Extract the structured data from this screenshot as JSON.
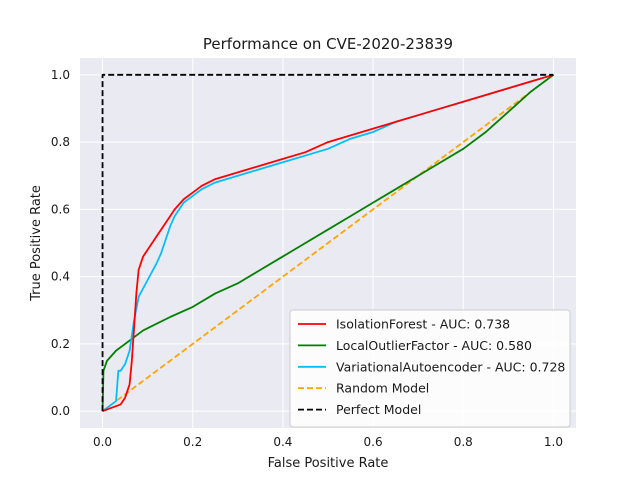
{
  "chart_data": {
    "type": "line",
    "title": "Performance on CVE-2020-23839",
    "xlabel": "False Positive Rate",
    "ylabel": "True Positive Rate",
    "xlim": [
      -0.05,
      1.05
    ],
    "ylim": [
      -0.05,
      1.05
    ],
    "xticks": [
      0.0,
      0.2,
      0.4,
      0.6,
      0.8,
      1.0
    ],
    "yticks": [
      0.0,
      0.2,
      0.4,
      0.6,
      0.8,
      1.0
    ],
    "tick_labels_x": [
      "0.0",
      "0.2",
      "0.4",
      "0.6",
      "0.8",
      "1.0"
    ],
    "tick_labels_y": [
      "0.0",
      "0.2",
      "0.4",
      "0.6",
      "0.8",
      "1.0"
    ],
    "grid": true,
    "background": "#eaeaf2",
    "legend_position": "lower-right",
    "series": [
      {
        "name": "IsolationForest - AUC: 0.738",
        "color": "#ff0000",
        "dash": "solid",
        "x": [
          0.0,
          0.02,
          0.04,
          0.05,
          0.06,
          0.065,
          0.07,
          0.075,
          0.08,
          0.09,
          0.1,
          0.12,
          0.14,
          0.16,
          0.18,
          0.2,
          0.22,
          0.25,
          0.3,
          0.35,
          0.4,
          0.45,
          0.5,
          0.55,
          0.6,
          0.65,
          0.7,
          0.75,
          0.8,
          0.85,
          0.9,
          0.95,
          1.0
        ],
        "y": [
          0.0,
          0.01,
          0.02,
          0.04,
          0.08,
          0.15,
          0.25,
          0.35,
          0.42,
          0.46,
          0.48,
          0.52,
          0.56,
          0.6,
          0.63,
          0.65,
          0.67,
          0.69,
          0.71,
          0.73,
          0.75,
          0.77,
          0.8,
          0.82,
          0.84,
          0.86,
          0.88,
          0.9,
          0.92,
          0.94,
          0.96,
          0.98,
          1.0
        ]
      },
      {
        "name": "LocalOutlierFactor - AUC: 0.580",
        "color": "#008000",
        "dash": "solid",
        "x": [
          0.0,
          0.002,
          0.01,
          0.03,
          0.05,
          0.07,
          0.09,
          0.12,
          0.15,
          0.2,
          0.25,
          0.3,
          0.35,
          0.4,
          0.45,
          0.5,
          0.55,
          0.6,
          0.65,
          0.7,
          0.75,
          0.8,
          0.85,
          0.9,
          0.95,
          1.0
        ],
        "y": [
          0.0,
          0.12,
          0.15,
          0.18,
          0.2,
          0.22,
          0.24,
          0.26,
          0.28,
          0.31,
          0.35,
          0.38,
          0.42,
          0.46,
          0.5,
          0.54,
          0.58,
          0.62,
          0.66,
          0.7,
          0.74,
          0.78,
          0.83,
          0.89,
          0.95,
          1.0
        ]
      },
      {
        "name": "VariationalAutoencoder - AUC: 0.728",
        "color": "#00bfff",
        "dash": "solid",
        "x": [
          0.0,
          0.03,
          0.035,
          0.04,
          0.05,
          0.06,
          0.07,
          0.08,
          0.1,
          0.12,
          0.13,
          0.14,
          0.15,
          0.16,
          0.18,
          0.2,
          0.22,
          0.25,
          0.3,
          0.35,
          0.4,
          0.45,
          0.5,
          0.55,
          0.6,
          0.65,
          0.7,
          0.75,
          0.8,
          0.85,
          0.9,
          0.95,
          1.0
        ],
        "y": [
          0.0,
          0.03,
          0.12,
          0.12,
          0.14,
          0.18,
          0.27,
          0.34,
          0.39,
          0.44,
          0.47,
          0.51,
          0.55,
          0.58,
          0.62,
          0.64,
          0.66,
          0.68,
          0.7,
          0.72,
          0.74,
          0.76,
          0.78,
          0.81,
          0.83,
          0.86,
          0.88,
          0.9,
          0.92,
          0.94,
          0.96,
          0.98,
          1.0
        ]
      },
      {
        "name": "Random Model",
        "color": "#ffa500",
        "dash": "dashed",
        "x": [
          0.0,
          1.0
        ],
        "y": [
          0.0,
          1.0
        ]
      },
      {
        "name": "Perfect Model",
        "color": "#000000",
        "dash": "dashed",
        "x": [
          0.0,
          0.0,
          1.0
        ],
        "y": [
          0.0,
          1.0,
          1.0
        ]
      }
    ]
  }
}
